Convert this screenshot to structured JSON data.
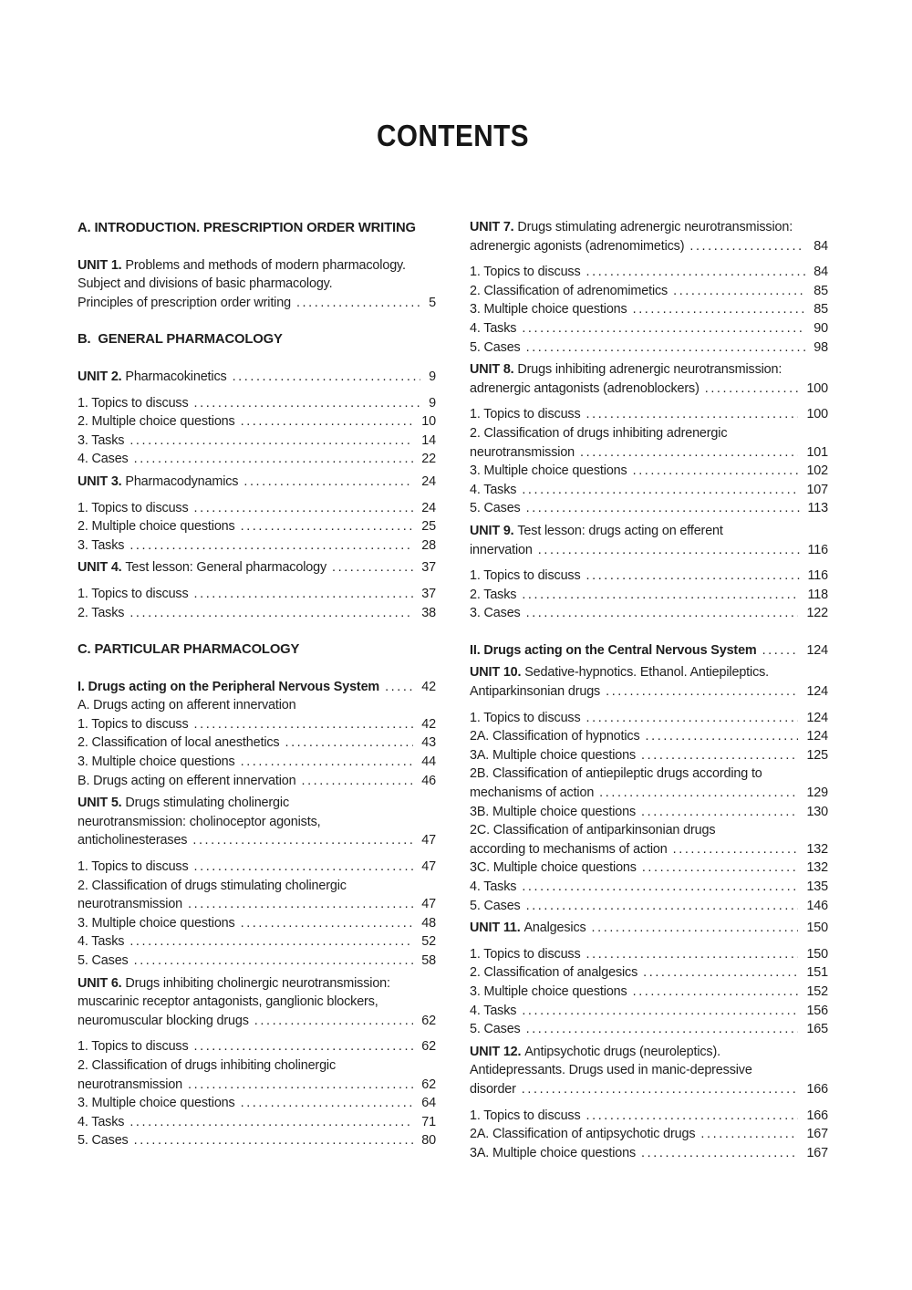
{
  "page_title": "CONTENTS",
  "colors": {
    "text": "#1e1e1e",
    "background": "#ffffff"
  },
  "toc": {
    "left_column": [
      {
        "type": "section",
        "lines": [
          "A. INTRODUCTION. PRESCRIPTION ORDER WRITING"
        ],
        "page": null
      },
      {
        "type": "unit",
        "bold": "UNIT 1.",
        "lines": [
          "Problems and methods of modern pharmacology.",
          "Subject and divisions of basic pharmacology.",
          "Principles of prescription order writing"
        ],
        "page": "5"
      },
      {
        "type": "section",
        "lines": [
          "B.  GENERAL PHARMACOLOGY"
        ],
        "page": null
      },
      {
        "type": "unit",
        "bold": "UNIT 2.",
        "lines": [
          "Pharmacokinetics"
        ],
        "page": "9"
      },
      {
        "type": "item",
        "lines": [
          "1. Topics to discuss"
        ],
        "page": "9"
      },
      {
        "type": "item",
        "lines": [
          "2. Multiple choice questions"
        ],
        "page": "10"
      },
      {
        "type": "item",
        "lines": [
          "3. Tasks"
        ],
        "page": "14"
      },
      {
        "type": "item",
        "lines": [
          "4. Cases"
        ],
        "page": "22"
      },
      {
        "type": "unit",
        "bold": "UNIT 3.",
        "lines": [
          "Pharmacodynamics"
        ],
        "page": "24"
      },
      {
        "type": "item",
        "lines": [
          "1. Topics to discuss"
        ],
        "page": "24"
      },
      {
        "type": "item",
        "lines": [
          "2. Multiple choice questions"
        ],
        "page": "25"
      },
      {
        "type": "item",
        "lines": [
          "3. Tasks"
        ],
        "page": "28"
      },
      {
        "type": "unit",
        "bold": "UNIT 4.",
        "lines": [
          "Test lesson: General pharmacology"
        ],
        "page": "37"
      },
      {
        "type": "item",
        "lines": [
          "1. Topics to discuss"
        ],
        "page": "37"
      },
      {
        "type": "item",
        "lines": [
          "2. Tasks"
        ],
        "page": "38"
      },
      {
        "type": "section",
        "lines": [
          "C. PARTICULAR PHARMACOLOGY"
        ],
        "page": null
      },
      {
        "type": "subsection",
        "lines": [
          "I. Drugs acting on the Peripheral Nervous System"
        ],
        "page": "42"
      },
      {
        "type": "item",
        "lines": [
          "A. Drugs acting on afferent innervation"
        ],
        "page": null
      },
      {
        "type": "item",
        "lines": [
          "1. Topics to discuss"
        ],
        "page": "42"
      },
      {
        "type": "item",
        "lines": [
          "2. Classification of local anesthetics"
        ],
        "page": "43"
      },
      {
        "type": "item",
        "lines": [
          "3. Multiple choice questions"
        ],
        "page": "44"
      },
      {
        "type": "item",
        "lines": [
          "B. Drugs acting on efferent innervation"
        ],
        "page": "46"
      },
      {
        "type": "unit",
        "bold": "UNIT 5.",
        "lines": [
          "Drugs stimulating cholinergic",
          "neurotransmission: cholinoceptor agonists,",
          "anticholinesterases"
        ],
        "page": "47"
      },
      {
        "type": "item",
        "lines": [
          "1. Topics to discuss"
        ],
        "page": "47"
      },
      {
        "type": "item",
        "lines": [
          "2. Classification of drugs stimulating cholinergic",
          "neurotransmission"
        ],
        "page": "47"
      },
      {
        "type": "item",
        "lines": [
          "3. Multiple choice questions"
        ],
        "page": "48"
      },
      {
        "type": "item",
        "lines": [
          "4. Tasks"
        ],
        "page": "52"
      },
      {
        "type": "item",
        "lines": [
          "5. Cases"
        ],
        "page": "58"
      },
      {
        "type": "unit",
        "bold": "UNIT 6.",
        "lines": [
          "Drugs inhibiting cholinergic neurotransmission:",
          "muscarinic receptor antagonists, ganglionic blockers,",
          "neuromuscular blocking drugs"
        ],
        "page": "62"
      },
      {
        "type": "item",
        "lines": [
          "1. Topics to discuss"
        ],
        "page": "62"
      },
      {
        "type": "item",
        "lines": [
          "2. Classification of drugs inhibiting cholinergic",
          "neurotransmission"
        ],
        "page": "62"
      },
      {
        "type": "item",
        "lines": [
          "3. Multiple choice questions"
        ],
        "page": "64"
      },
      {
        "type": "item",
        "lines": [
          "4. Tasks"
        ],
        "page": "71"
      },
      {
        "type": "item",
        "lines": [
          "5. Cases"
        ],
        "page": "80"
      }
    ],
    "right_column": [
      {
        "type": "unit",
        "bold": "UNIT 7.",
        "lines": [
          "Drugs stimulating adrenergic neurotransmission:",
          "adrenergic agonists (adrenomimetics)"
        ],
        "page": "84"
      },
      {
        "type": "item",
        "lines": [
          "1. Topics to discuss"
        ],
        "page": "84"
      },
      {
        "type": "item",
        "lines": [
          "2. Classification of adrenomimetics"
        ],
        "page": "85"
      },
      {
        "type": "item",
        "lines": [
          "3. Multiple choice questions"
        ],
        "page": "85"
      },
      {
        "type": "item",
        "lines": [
          "4. Tasks"
        ],
        "page": "90"
      },
      {
        "type": "item",
        "lines": [
          "5. Cases"
        ],
        "page": "98"
      },
      {
        "type": "unit",
        "bold": "UNIT 8.",
        "lines": [
          "Drugs inhibiting adrenergic neurotransmission:",
          "adrenergic antagonists (adrenoblockers)"
        ],
        "page": "100"
      },
      {
        "type": "item",
        "lines": [
          "1. Topics to discuss"
        ],
        "page": "100"
      },
      {
        "type": "item",
        "lines": [
          "2. Classification of drugs inhibiting adrenergic",
          "neurotransmission"
        ],
        "page": "101"
      },
      {
        "type": "item",
        "lines": [
          "3. Multiple choice questions"
        ],
        "page": "102"
      },
      {
        "type": "item",
        "lines": [
          "4. Tasks"
        ],
        "page": "107"
      },
      {
        "type": "item",
        "lines": [
          "5. Cases"
        ],
        "page": "113"
      },
      {
        "type": "unit",
        "bold": "UNIT 9.",
        "lines": [
          "Test lesson: drugs acting on efferent",
          "innervation"
        ],
        "page": "116"
      },
      {
        "type": "item",
        "lines": [
          "1. Topics to discuss"
        ],
        "page": "116"
      },
      {
        "type": "item",
        "lines": [
          "2. Tasks"
        ],
        "page": "118"
      },
      {
        "type": "item",
        "lines": [
          "3. Cases"
        ],
        "page": "122"
      },
      {
        "type": "subsection",
        "lines": [
          "II. Drugs acting on the Central Nervous System"
        ],
        "page": "124"
      },
      {
        "type": "unit",
        "bold": "UNIT 10.",
        "lines": [
          "Sedative-hypnotics. Ethanol. Antiepileptics.",
          "Antiparkinsonian drugs"
        ],
        "page": "124"
      },
      {
        "type": "item",
        "lines": [
          "1. Topics to discuss"
        ],
        "page": "124"
      },
      {
        "type": "item",
        "lines": [
          "2A. Classification of hypnotics"
        ],
        "page": "124"
      },
      {
        "type": "item",
        "lines": [
          "3A. Multiple choice questions"
        ],
        "page": "125"
      },
      {
        "type": "item",
        "lines": [
          "2B. Classification of antiepileptic drugs according to",
          "mechanisms of action"
        ],
        "page": "129"
      },
      {
        "type": "item",
        "lines": [
          "3B. Multiple choice questions"
        ],
        "page": "130"
      },
      {
        "type": "item",
        "lines": [
          "2C. Classification of antiparkinsonian drugs",
          "according to mechanisms of action"
        ],
        "page": "132"
      },
      {
        "type": "item",
        "lines": [
          "3C. Multiple choice questions"
        ],
        "page": "132"
      },
      {
        "type": "item",
        "lines": [
          "4. Tasks"
        ],
        "page": "135"
      },
      {
        "type": "item",
        "lines": [
          "5. Cases"
        ],
        "page": "146"
      },
      {
        "type": "unit",
        "bold": "UNIT 11.",
        "lines": [
          "Analgesics"
        ],
        "page": "150"
      },
      {
        "type": "item",
        "lines": [
          "1. Topics to discuss"
        ],
        "page": "150"
      },
      {
        "type": "item",
        "lines": [
          "2. Classification of analgesics"
        ],
        "page": "151"
      },
      {
        "type": "item",
        "lines": [
          "3. Multiple choice questions"
        ],
        "page": "152"
      },
      {
        "type": "item",
        "lines": [
          "4. Tasks"
        ],
        "page": "156"
      },
      {
        "type": "item",
        "lines": [
          "5. Cases"
        ],
        "page": "165"
      },
      {
        "type": "unit",
        "bold": "UNIT 12.",
        "lines": [
          "Antipsychotic drugs (neuroleptics).",
          "Antidepressants. Drugs used in manic-depressive",
          "disorder"
        ],
        "page": "166"
      },
      {
        "type": "item",
        "lines": [
          "1. Topics to discuss"
        ],
        "page": "166"
      },
      {
        "type": "item",
        "lines": [
          "2A. Classification of antipsychotic drugs"
        ],
        "page": "167"
      },
      {
        "type": "item",
        "lines": [
          "3A. Multiple choice questions"
        ],
        "page": "167"
      }
    ]
  }
}
